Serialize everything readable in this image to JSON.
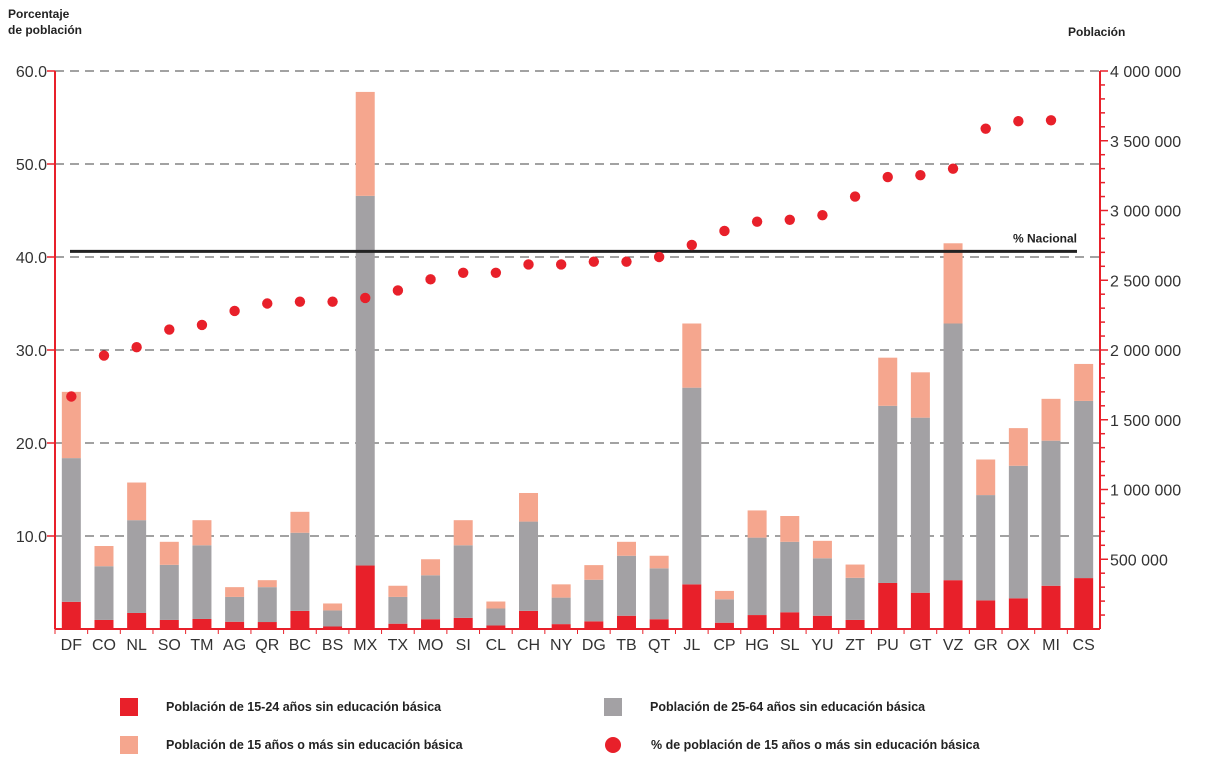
{
  "chart_data": {
    "type": "bar",
    "left_axis_title": "Porcentaje\nde población",
    "right_axis_title": "Población",
    "categories": [
      "DF",
      "CO",
      "NL",
      "SO",
      "TM",
      "AG",
      "QR",
      "BC",
      "BS",
      "MX",
      "TX",
      "MO",
      "SI",
      "CL",
      "CH",
      "NY",
      "DG",
      "TB",
      "QT",
      "JL",
      "CP",
      "HG",
      "SL",
      "YU",
      "ZT",
      "PU",
      "GT",
      "VZ",
      "GR",
      "OX",
      "MI",
      "CS"
    ],
    "left_axis": {
      "ylim": [
        0,
        60
      ],
      "ticks": [
        "10.0",
        "20.0",
        "30.0",
        "40.0",
        "50.0",
        "60.0"
      ]
    },
    "right_axis": {
      "ylim": [
        0,
        4000000
      ],
      "ticks": [
        "500 000",
        "1 000 000",
        "1 500 000",
        "2 000 000",
        "2 500 000",
        "3 000 000",
        "3 500 000",
        "4 000 000"
      ]
    },
    "series": [
      {
        "name": "Población de 15-24 años sin educación básica",
        "axis": "right",
        "kind": "stacked-bar",
        "color": "#e8202a",
        "values": [
          195000,
          65000,
          115000,
          65000,
          72000,
          52000,
          50000,
          130000,
          18000,
          455000,
          38000,
          70000,
          80000,
          25000,
          130000,
          35000,
          55000,
          95000,
          70000,
          320000,
          45000,
          100000,
          120000,
          95000,
          65000,
          330000,
          260000,
          350000,
          205000,
          220000,
          310000,
          365000
        ]
      },
      {
        "name": "Población de 25-64 años sin educación básica",
        "axis": "right",
        "kind": "stacked-bar",
        "color": "#a3a1a4",
        "values": [
          1030000,
          385000,
          665000,
          395000,
          528000,
          178000,
          250000,
          560000,
          115000,
          2650000,
          192000,
          315000,
          520000,
          122000,
          640000,
          190000,
          298000,
          430000,
          365000,
          1410000,
          168000,
          555000,
          505000,
          412000,
          302000,
          1270000,
          1255000,
          1840000,
          755000,
          950000,
          1040000,
          1270000
        ]
      },
      {
        "name": "Población de 15 años o más sin educación básica",
        "axis": "right",
        "kind": "stacked-bar",
        "color": "#f5a68e",
        "values": [
          475000,
          145000,
          270000,
          165000,
          180000,
          70000,
          50000,
          150000,
          50000,
          745000,
          80000,
          115000,
          180000,
          50000,
          205000,
          95000,
          105000,
          100000,
          90000,
          460000,
          60000,
          195000,
          185000,
          125000,
          95000,
          345000,
          325000,
          575000,
          255000,
          270000,
          300000,
          265000
        ]
      },
      {
        "name": "% de población de 15 años o más sin educación básica",
        "axis": "left",
        "kind": "scatter",
        "color": "#e8202a",
        "values": [
          25.0,
          29.4,
          30.3,
          32.2,
          32.7,
          34.2,
          35.0,
          35.2,
          35.2,
          35.6,
          36.4,
          37.6,
          38.3,
          38.3,
          39.2,
          39.2,
          39.5,
          39.5,
          40.0,
          41.3,
          42.8,
          43.8,
          44.0,
          44.5,
          46.5,
          48.6,
          48.8,
          49.5,
          53.8,
          54.6,
          54.7,
          null
        ]
      }
    ],
    "reference_line": {
      "label": "% Nacional",
      "value": 40.6,
      "axis": "left",
      "color": "#222222"
    },
    "grid": true,
    "legend_position": "bottom"
  },
  "legend": [
    {
      "label": "Población de 15-24 años sin educación básica",
      "color": "#e8202a",
      "shape": "square"
    },
    {
      "label": "Población de 25-64 años sin educación básica",
      "color": "#a3a1a4",
      "shape": "square"
    },
    {
      "label": "Población de 15 años o más sin educación básica",
      "color": "#f5a68e",
      "shape": "square"
    },
    {
      "label": "% de población de 15 años o más sin educación básica",
      "color": "#e8202a",
      "shape": "circle"
    }
  ]
}
